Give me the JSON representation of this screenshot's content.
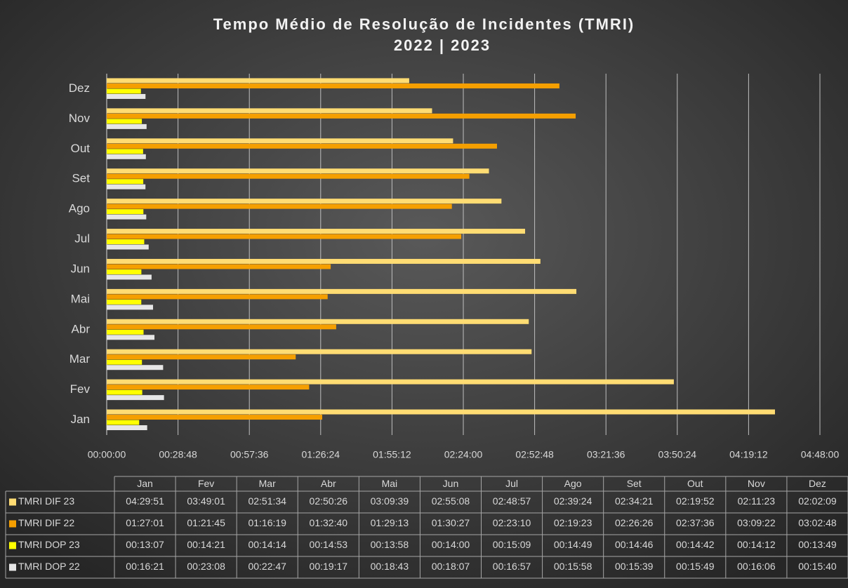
{
  "chart_data": {
    "type": "barh",
    "title": "Tempo Médio de Resolução de Incidentes (TMRI)",
    "subtitle": "2022 | 2023",
    "categories": [
      "Jan",
      "Fev",
      "Mar",
      "Abr",
      "Mai",
      "Jun",
      "Jul",
      "Ago",
      "Set",
      "Out",
      "Nov",
      "Dez"
    ],
    "series": [
      {
        "name": "TMRI DIF 23",
        "color": "#ffdc73",
        "values": [
          16191,
          13741,
          10294,
          10226,
          11379,
          10508,
          10137,
          9564,
          9261,
          8392,
          7883,
          7329
        ],
        "value_labels": [
          "04:29:51",
          "03:49:01",
          "02:51:34",
          "02:50:26",
          "03:09:39",
          "02:55:08",
          "02:48:57",
          "02:39:24",
          "02:34:21",
          "02:19:52",
          "02:11:23",
          "02:02:09"
        ]
      },
      {
        "name": "TMRI DIF 22",
        "color": "#f59f00",
        "values": [
          5221,
          4905,
          4579,
          5560,
          5353,
          5427,
          8590,
          8363,
          8786,
          9456,
          11362,
          10968
        ],
        "value_labels": [
          "01:27:01",
          "01:21:45",
          "01:16:19",
          "01:32:40",
          "01:29:13",
          "01:30:27",
          "02:23:10",
          "02:19:23",
          "02:26:26",
          "02:37:36",
          "03:09:22",
          "03:02:48"
        ]
      },
      {
        "name": "TMRI DOP 23",
        "color": "#ffff00",
        "values": [
          787,
          861,
          854,
          893,
          838,
          840,
          909,
          889,
          886,
          882,
          852,
          829
        ],
        "value_labels": [
          "00:13:07",
          "00:14:21",
          "00:14:14",
          "00:14:53",
          "00:13:58",
          "00:14:00",
          "00:15:09",
          "00:14:49",
          "00:14:46",
          "00:14:42",
          "00:14:12",
          "00:13:49"
        ]
      },
      {
        "name": "TMRI DOP 22",
        "color": "#e6e6e6",
        "values": [
          981,
          1388,
          1367,
          1157,
          1123,
          1087,
          1017,
          958,
          939,
          949,
          966,
          940
        ],
        "value_labels": [
          "00:16:21",
          "00:23:08",
          "00:22:47",
          "00:19:17",
          "00:18:43",
          "00:18:07",
          "00:16:57",
          "00:15:58",
          "00:15:39",
          "00:15:49",
          "00:16:06",
          "00:15:40"
        ]
      }
    ],
    "xlim": [
      0,
      17280
    ],
    "xticks": [
      {
        "value": 0,
        "label": "00:00:00"
      },
      {
        "value": 1728,
        "label": "00:28:48"
      },
      {
        "value": 3456,
        "label": "00:57:36"
      },
      {
        "value": 5184,
        "label": "01:26:24"
      },
      {
        "value": 6912,
        "label": "01:55:12"
      },
      {
        "value": 8640,
        "label": "02:24:00"
      },
      {
        "value": 10368,
        "label": "02:52:48"
      },
      {
        "value": 12096,
        "label": "03:21:36"
      },
      {
        "value": 13824,
        "label": "03:50:24"
      },
      {
        "value": 15552,
        "label": "04:19:12"
      },
      {
        "value": 17280,
        "label": "04:48:00"
      }
    ],
    "grid": true
  }
}
